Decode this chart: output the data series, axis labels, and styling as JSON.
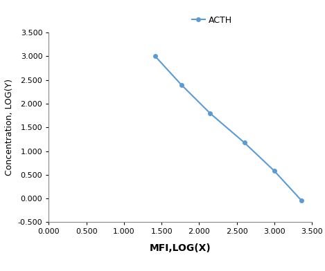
{
  "x": [
    1.415,
    1.763,
    2.146,
    2.602,
    3.0,
    3.362
  ],
  "y": [
    3.0,
    2.398,
    1.796,
    1.176,
    0.58,
    -0.046
  ],
  "line_color": "#5B9BD5",
  "marker": "o",
  "marker_size": 4,
  "legend_label": "ACTH",
  "xlabel": "MFI,LOG(X)",
  "ylabel": "Concentration, LOG(Y)",
  "xlim": [
    0.0,
    3.5
  ],
  "ylim": [
    -0.5,
    3.5
  ],
  "xticks": [
    0.0,
    0.5,
    1.0,
    1.5,
    2.0,
    2.5,
    3.0,
    3.5
  ],
  "yticks": [
    -0.5,
    0.0,
    0.5,
    1.0,
    1.5,
    2.0,
    2.5,
    3.0,
    3.5
  ],
  "background_color": "#ffffff",
  "xlabel_fontsize": 10,
  "ylabel_fontsize": 9,
  "tick_fontsize": 8,
  "legend_fontsize": 9
}
